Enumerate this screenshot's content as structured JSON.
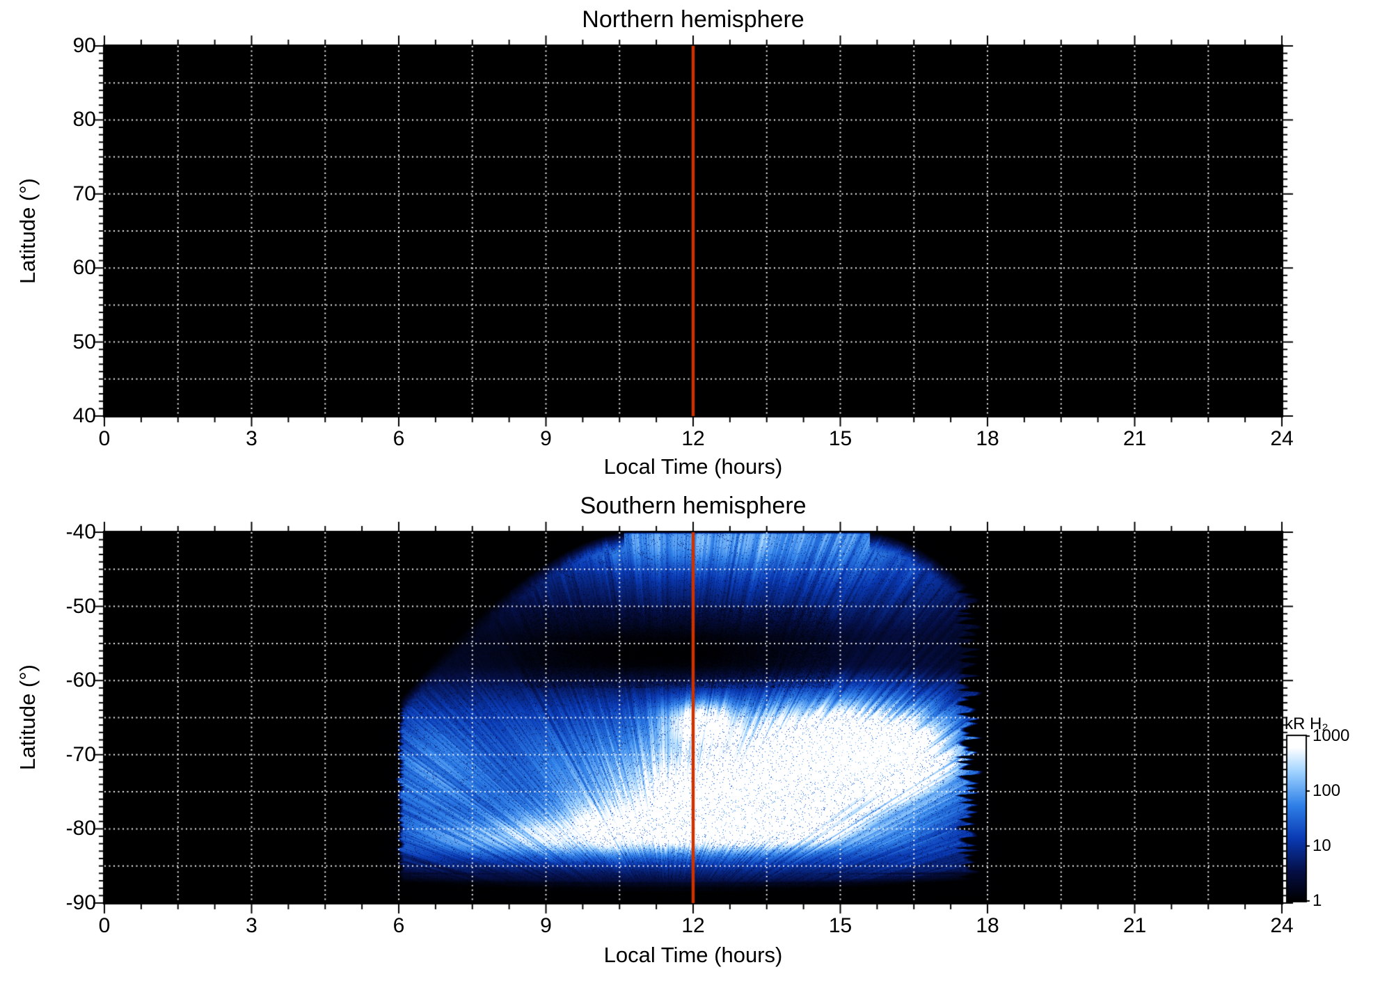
{
  "figure": {
    "background": "#ffffff",
    "axis_color": "#000000",
    "text_color": "#000000"
  },
  "chart_data": [
    {
      "type": "heatmap",
      "panel": "north",
      "title": "Northern hemisphere",
      "xlabel": "Local Time (hours)",
      "ylabel": "Latitude (°)",
      "xlim": [
        0,
        24
      ],
      "ylim": [
        40,
        90
      ],
      "xticks": [
        0,
        3,
        6,
        9,
        12,
        15,
        18,
        21,
        24
      ],
      "yticks": [
        90,
        80,
        70,
        60,
        50,
        40
      ],
      "background": "#000000",
      "grid": {
        "on": true,
        "style": "dotted",
        "color": "#ffffff",
        "x_step": 1.5,
        "y_step": 5
      },
      "noon_line": {
        "x": 12,
        "color": "#cc3300"
      },
      "coverage": "no data — panel entirely black (no emission shown)"
    },
    {
      "type": "heatmap",
      "panel": "south",
      "title": "Southern hemisphere",
      "xlabel": "Local Time (hours)",
      "ylabel": "Latitude (°)",
      "xlim": [
        0,
        24
      ],
      "ylim": [
        -90,
        -40
      ],
      "xticks": [
        0,
        3,
        6,
        9,
        12,
        15,
        18,
        21,
        24
      ],
      "yticks": [
        -40,
        -50,
        -60,
        -70,
        -80,
        -90
      ],
      "background": "#000000",
      "grid": {
        "on": true,
        "style": "dotted",
        "color": "#ffffff",
        "x_step": 1.5,
        "y_step": 5
      },
      "noon_line": {
        "x": 12,
        "color": "#cc3300"
      },
      "colorbar": {
        "label": "kR H₂",
        "scale": "log",
        "ticks": [
          1000,
          100,
          10,
          1
        ],
        "range": [
          1,
          1000
        ],
        "stops": [
          [
            0.0,
            "#000000"
          ],
          [
            0.18,
            "#050f46"
          ],
          [
            0.38,
            "#0a3ab4"
          ],
          [
            0.58,
            "#2f80e8"
          ],
          [
            0.78,
            "#9ed2ff"
          ],
          [
            0.93,
            "#ffffff"
          ],
          [
            1.0,
            "#ffffff"
          ]
        ]
      },
      "emission": {
        "description": "H2 emission observed between ~06 and ~17.6 h local time; wedge-shaped coverage reaching -40° between ~10.6 and ~15.6 h, brightening poleward with saturated white arcs between -63° and -82°, streaked scan-line texture fanning from the pole, dark speckled zone near -50° to -61° around noon, ragged blue streak edges on left/right boundaries.",
        "lt_range": [
          6.05,
          17.9
        ],
        "upper_boundary": {
          "flat_lt": [
            10.6,
            15.6
          ],
          "flat_lat": -40,
          "left_k": 1.98,
          "left_p": 1.6,
          "right_k": 2.2,
          "right_p": 1.7
        },
        "bottom_boundary": {
          "center_lt": 11.5,
          "center_lat": -88.6,
          "edge_rise": 1.4,
          "half_width": 5.8
        },
        "fan_origin": {
          "lt": 11.5,
          "lat": -95
        },
        "lat_profile": [
          [
            -89,
            0.1
          ],
          [
            -87.5,
            0.18
          ],
          [
            -85,
            0.38
          ],
          [
            -82,
            0.6
          ],
          [
            -79,
            0.7
          ],
          [
            -76,
            0.78
          ],
          [
            -72,
            0.76
          ],
          [
            -68,
            0.68
          ],
          [
            -64,
            0.58
          ],
          [
            -61,
            0.42
          ],
          [
            -58,
            0.22
          ],
          [
            -54,
            0.2
          ],
          [
            -50,
            0.3
          ],
          [
            -46,
            0.44
          ],
          [
            -42,
            0.56
          ],
          [
            -40,
            0.6
          ]
        ],
        "lt_profile": [
          [
            5.8,
            0.48
          ],
          [
            7.5,
            0.56
          ],
          [
            9,
            0.62
          ],
          [
            10.5,
            0.7
          ],
          [
            12,
            0.78
          ],
          [
            13.5,
            0.86
          ],
          [
            15,
            0.9
          ],
          [
            16.3,
            0.84
          ],
          [
            17.2,
            0.68
          ],
          [
            18,
            0.5
          ]
        ],
        "bright_spots": [
          {
            "lt": 12.15,
            "lat": -65.5,
            "rx": 0.5,
            "ry": 2.0,
            "amp": 0.5
          },
          {
            "lt": 15.2,
            "lat": -67.5,
            "rx": 1.35,
            "ry": 3.2,
            "amp": 0.48
          },
          {
            "lt": 16.0,
            "lat": -71.5,
            "rx": 1.0,
            "ry": 3.0,
            "amp": 0.42
          },
          {
            "lt": 12.9,
            "lat": -75.5,
            "rx": 1.7,
            "ry": 3.5,
            "amp": 0.5
          },
          {
            "lt": 11.2,
            "lat": -79.5,
            "rx": 1.7,
            "ry": 2.3,
            "amp": 0.4
          },
          {
            "lt": 9.0,
            "lat": -81.5,
            "rx": 2.0,
            "ry": 1.9,
            "amp": 0.36
          },
          {
            "lt": 13.8,
            "lat": -80.5,
            "rx": 1.3,
            "ry": 1.7,
            "amp": 0.3
          },
          {
            "lt": 11.8,
            "lat": -41.5,
            "rx": 2.4,
            "ry": 2.6,
            "amp": 0.2
          },
          {
            "lt": 13.5,
            "lat": -70.0,
            "rx": 2.6,
            "ry": 4.0,
            "amp": 0.2
          },
          {
            "lt": 6.6,
            "lat": -72.0,
            "rx": 0.8,
            "ry": 6.0,
            "amp": 0.18
          },
          {
            "lt": 11.8,
            "lat": -56.5,
            "rx": 2.6,
            "ry": 3.2,
            "amp": -0.16
          }
        ],
        "speckle_zone": {
          "lt": [
            8.5,
            14.8
          ],
          "lat": [
            -61,
            -50
          ]
        }
      }
    }
  ]
}
